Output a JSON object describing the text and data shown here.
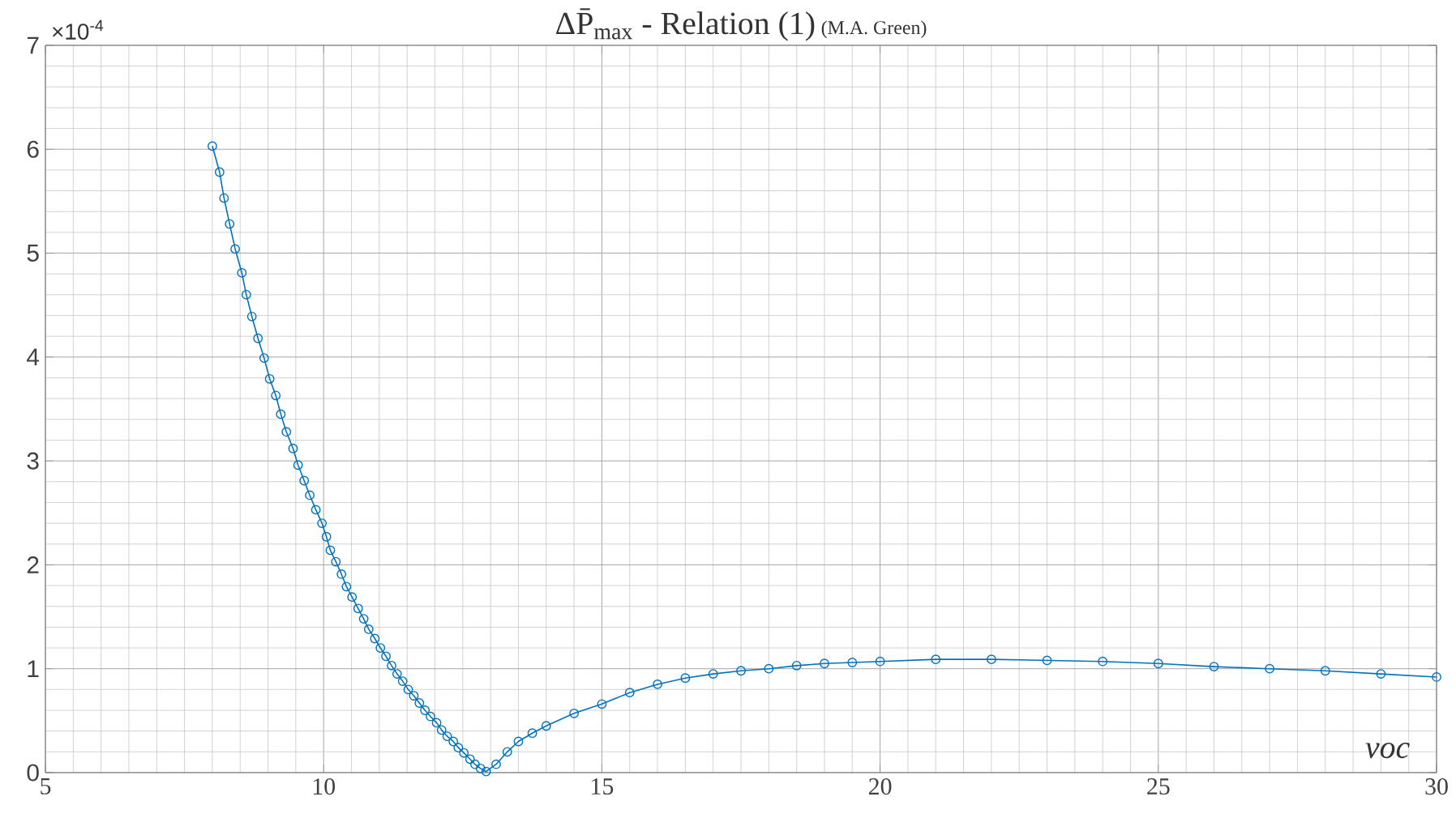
{
  "chart_data": {
    "type": "line",
    "title": "ΔP̄$_{max}$ - Relation (1)",
    "subtitle": "(M.A. Green)",
    "xlabel": "voc",
    "annotations": [
      "×10$^{-4}$"
    ],
    "xlim": [
      5,
      30
    ],
    "ylim": [
      0,
      7
    ],
    "xticks": [
      5,
      10,
      15,
      20,
      25,
      30
    ],
    "yticks": [
      0,
      1,
      2,
      3,
      4,
      5,
      6,
      7
    ],
    "grid": true,
    "marker": "circle",
    "line_style": "solid",
    "series": [
      {
        "color": "#0072bd",
        "x": [
          8.0,
          8.13,
          8.21,
          8.31,
          8.41,
          8.53,
          8.61,
          8.71,
          8.82,
          8.93,
          9.03,
          9.14,
          9.23,
          9.33,
          9.45,
          9.54,
          9.65,
          9.75,
          9.86,
          9.97,
          10.05,
          10.12,
          10.22,
          10.32,
          10.41,
          10.51,
          10.62,
          10.72,
          10.81,
          10.92,
          11.02,
          11.12,
          11.22,
          11.32,
          11.42,
          11.52,
          11.62,
          11.72,
          11.82,
          11.92,
          12.03,
          12.12,
          12.22,
          12.33,
          12.42,
          12.52,
          12.63,
          12.72,
          12.82,
          12.92,
          13.1,
          13.3,
          13.5,
          13.75,
          14.0,
          14.5,
          15.0,
          15.5,
          16.0,
          16.5,
          17.0,
          17.5,
          18.0,
          18.5,
          19.0,
          19.5,
          20.0,
          21.0,
          22.0,
          23.0,
          24.0,
          25.0,
          26.0,
          27.0,
          28.0,
          29.0,
          30.0
        ],
        "values": [
          6.03,
          5.78,
          5.53,
          5.28,
          5.04,
          4.81,
          4.6,
          4.39,
          4.18,
          3.99,
          3.79,
          3.63,
          3.45,
          3.28,
          3.12,
          2.96,
          2.81,
          2.67,
          2.53,
          2.4,
          2.27,
          2.14,
          2.03,
          1.91,
          1.79,
          1.69,
          1.58,
          1.48,
          1.38,
          1.29,
          1.2,
          1.12,
          1.03,
          0.95,
          0.88,
          0.8,
          0.74,
          0.67,
          0.6,
          0.54,
          0.48,
          0.41,
          0.35,
          0.3,
          0.24,
          0.19,
          0.13,
          0.08,
          0.04,
          0.01,
          0.08,
          0.2,
          0.3,
          0.38,
          0.45,
          0.57,
          0.66,
          0.77,
          0.85,
          0.91,
          0.95,
          0.98,
          1.0,
          1.03,
          1.05,
          1.06,
          1.07,
          1.09,
          1.09,
          1.08,
          1.07,
          1.05,
          1.02,
          1.0,
          0.98,
          0.95,
          0.92
        ]
      }
    ]
  }
}
